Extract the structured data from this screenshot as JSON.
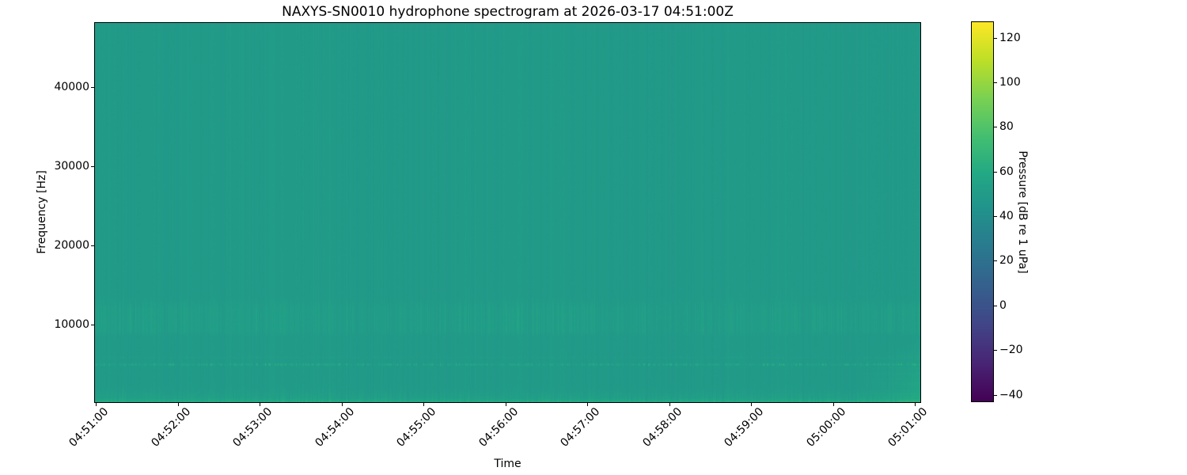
{
  "chart_data": {
    "type": "heatmap",
    "title": "NAXYS-SN0010 hydrophone spectrogram at 2026-03-17 04:51:00Z",
    "xlabel": "Time",
    "ylabel": "Frequency [Hz]",
    "colorbar_label": "Pressure [dB re 1 uPa]",
    "colormap": "viridis",
    "colormap_stops": [
      [
        0.0,
        "#440154"
      ],
      [
        0.1,
        "#482475"
      ],
      [
        0.2,
        "#414487"
      ],
      [
        0.3,
        "#355f8d"
      ],
      [
        0.4,
        "#2a788e"
      ],
      [
        0.5,
        "#21918c"
      ],
      [
        0.6,
        "#22a884"
      ],
      [
        0.7,
        "#44bf70"
      ],
      [
        0.8,
        "#7ad151"
      ],
      [
        0.9,
        "#bddf26"
      ],
      [
        1.0,
        "#fde725"
      ]
    ],
    "x_tick_labels": [
      "04:51:00",
      "04:52:00",
      "04:53:00",
      "04:54:00",
      "04:55:00",
      "04:56:00",
      "04:57:00",
      "04:58:00",
      "04:59:00",
      "05:00:00",
      "05:01:00"
    ],
    "time_start": "04:51:00",
    "time_end": "05:01:00",
    "y_tick_values": [
      10000,
      20000,
      30000,
      40000
    ],
    "y_tick_labels": [
      "10000",
      "20000",
      "30000",
      "40000"
    ],
    "freq_range_hz": [
      200,
      48100
    ],
    "colorbar_tick_values": [
      120,
      100,
      80,
      60,
      40,
      20,
      0,
      -20,
      -40
    ],
    "colorbar_tick_labels": [
      "120",
      "100",
      "80",
      "60",
      "40",
      "20",
      "0",
      "−20",
      "−40"
    ],
    "clim_db": [
      -43,
      127
    ],
    "background_level_db": 49,
    "features": [
      {
        "name": "broadband_striations",
        "pattern": "fine vertical columns over full band",
        "strength_db": 1.8
      },
      {
        "name": "elevated_band",
        "freq_hz": [
          8500,
          13500
        ],
        "boost_db": 2.5,
        "pattern": "columnar speckle"
      },
      {
        "name": "tonal_line",
        "freq_hz": 5000,
        "half_width_hz": 220,
        "boost_db": 16,
        "pattern": "intermittent bright dashes"
      },
      {
        "name": "faint_tonal_line",
        "freq_hz": 5900,
        "half_width_hz": 150,
        "boost_db": 3,
        "pattern": "faint continuous"
      },
      {
        "name": "low_band",
        "freq_hz": [
          0,
          2600
        ],
        "boost_db": 12,
        "pattern": "gradient, brightest at bottom edge"
      },
      {
        "name": "end_event",
        "freq_hz": [
          0,
          9000
        ],
        "time_fraction": [
          0.91,
          1.0
        ],
        "boost_db": 11,
        "pattern": "horizontal banding ramping toward 05:01:00"
      }
    ]
  }
}
